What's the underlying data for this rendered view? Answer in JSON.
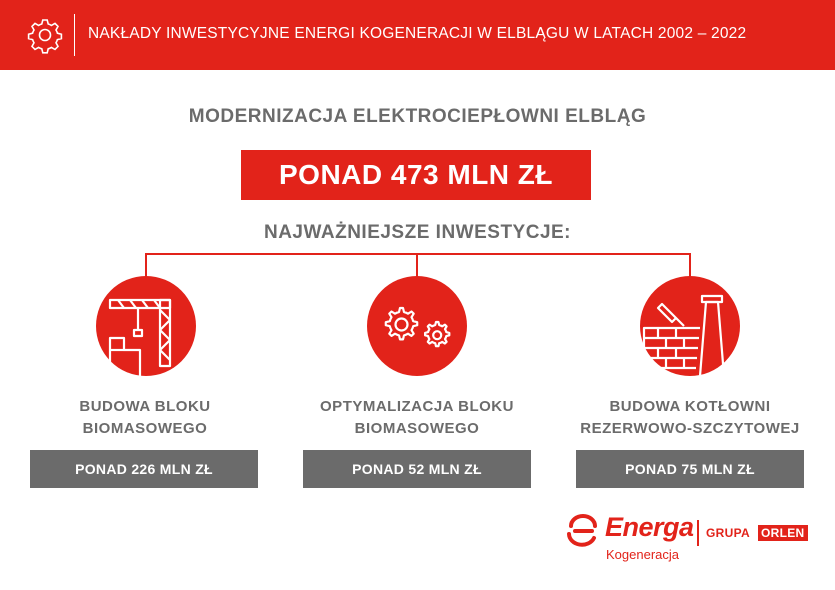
{
  "header": {
    "title": "NAKŁADY INWESTYCYJNE ENERGI KOGENERACJI W ELBLĄGU W LATACH 2002 – 2022",
    "icon": "gear-icon"
  },
  "main": {
    "subtitle": "MODERNIZACJA ELEKTROCIEPŁOWNI ELBLĄG",
    "total": "PONAD 473 MLN ZŁ",
    "key_title": "NAJWAŻNIEJSZE INWESTYCJE:"
  },
  "investments": [
    {
      "icon": "construction-crane-icon",
      "label_line1": "BUDOWA BLOKU",
      "label_line2": "BIOMASOWEGO",
      "amount": "PONAD 226 MLN ZŁ"
    },
    {
      "icon": "gears-icon",
      "label_line1": "OPTYMALIZACJA BLOKU",
      "label_line2": "BIOMASOWEGO",
      "amount": "PONAD 52 MLN ZŁ"
    },
    {
      "icon": "boiler-chimney-icon",
      "label_line1": "BUDOWA KOTŁOWNI",
      "label_line2": "REZERWOWO-SZCZYTOWEJ",
      "amount": "PONAD 75 MLN ZŁ"
    }
  ],
  "logo": {
    "brand": "Energa",
    "sub": "Kogeneracja",
    "group": "GRUPA",
    "group_brand": "ORLEN"
  },
  "colors": {
    "accent": "#e2231a",
    "gray": "#6b6b6b",
    "background": "#ffffff"
  }
}
